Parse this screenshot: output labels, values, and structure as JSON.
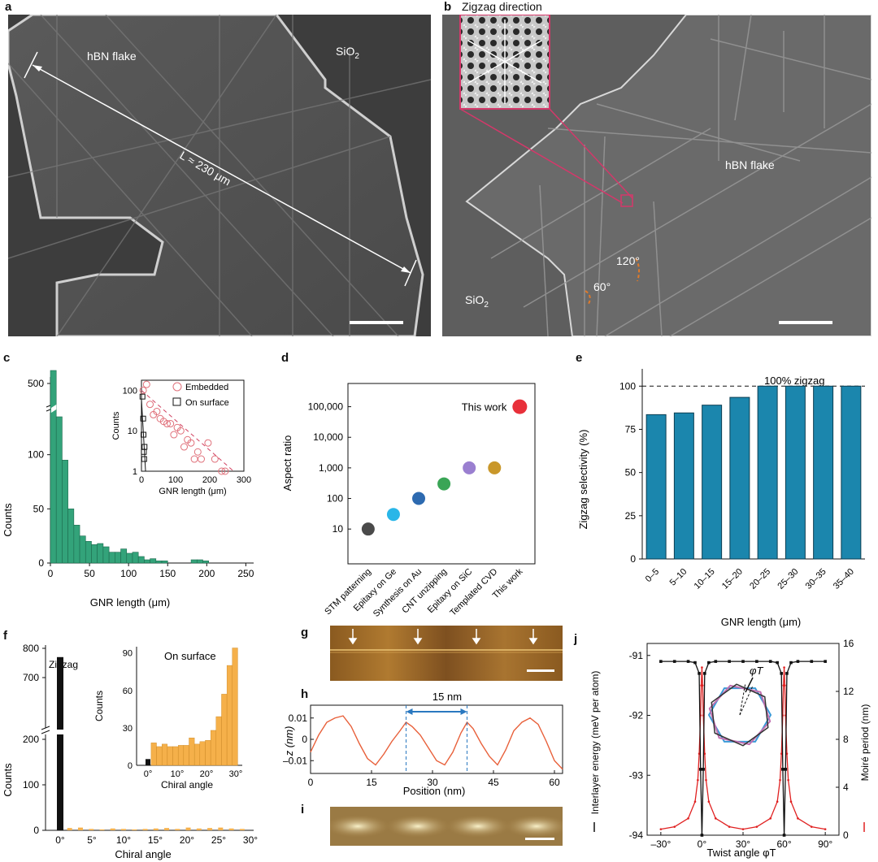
{
  "panels": {
    "a": {
      "letter": "a",
      "label_hbn": "hBN flake",
      "label_sio2": "SiO",
      "sub2": "2",
      "length_label": "L ≈ 230 μm"
    },
    "b": {
      "letter": "b",
      "inset_title": "Zigzag direction",
      "label_hbn": "hBN flake",
      "label_sio2": "SiO",
      "sub2": "2",
      "angle1": "120°",
      "angle2": "60°"
    },
    "c": {
      "letter": "c"
    },
    "d": {
      "letter": "d"
    },
    "e": {
      "letter": "e"
    },
    "f": {
      "letter": "f"
    },
    "g": {
      "letter": "g"
    },
    "h": {
      "letter": "h"
    },
    "i": {
      "letter": "i"
    },
    "j": {
      "letter": "j"
    }
  },
  "chart_data": [
    {
      "id": "c",
      "type": "bar",
      "xlabel": "GNR length (μm)",
      "ylabel": "Counts",
      "xticks": [
        0,
        50,
        100,
        150,
        200,
        250
      ],
      "yticks_lower": [
        0,
        50,
        100
      ],
      "yticks_upper": [
        500
      ],
      "bin_width": 7.5,
      "bin_starts": [
        0,
        7.5,
        15,
        22.5,
        30,
        37.5,
        45,
        52.5,
        60,
        67.5,
        75,
        82.5,
        90,
        97.5,
        105,
        112.5,
        120,
        127.5,
        135,
        142.5,
        150,
        157.5,
        165,
        172.5,
        180,
        187.5,
        195
      ],
      "values": [
        600,
        135,
        95,
        50,
        35,
        25,
        20,
        17,
        18,
        15,
        10,
        10,
        13,
        9,
        10,
        6,
        3,
        4,
        2,
        2,
        0,
        0,
        0,
        0,
        3,
        3,
        2
      ],
      "inset": {
        "type": "scatter",
        "xlabel": "GNR length (μm)",
        "ylabel": "Counts",
        "xticks": [
          0,
          100,
          200,
          300
        ],
        "yticks": [
          "1",
          "10",
          "100"
        ],
        "legend": [
          "Embedded",
          "On surface"
        ],
        "series": [
          {
            "name": "Embedded",
            "points": [
              [
                5,
                100
              ],
              [
                15,
                140
              ],
              [
                25,
                45
              ],
              [
                35,
                25
              ],
              [
                45,
                30
              ],
              [
                55,
                20
              ],
              [
                65,
                17
              ],
              [
                75,
                15
              ],
              [
                85,
                15
              ],
              [
                95,
                8
              ],
              [
                105,
                12
              ],
              [
                115,
                10
              ],
              [
                125,
                4
              ],
              [
                135,
                6
              ],
              [
                145,
                5
              ],
              [
                155,
                2
              ],
              [
                165,
                3
              ],
              [
                175,
                2
              ],
              [
                195,
                5
              ],
              [
                215,
                2
              ],
              [
                235,
                1
              ],
              [
                245,
                1
              ]
            ]
          },
          {
            "name": "On surface",
            "points": [
              [
                3,
                70
              ],
              [
                5,
                20
              ],
              [
                6,
                8
              ],
              [
                7,
                3
              ],
              [
                8,
                2
              ],
              [
                9,
                4
              ]
            ]
          }
        ]
      }
    },
    {
      "id": "d",
      "type": "scatter",
      "ylabel": "Aspect ratio",
      "yscale": "log",
      "yticks": [
        "10",
        "100",
        "1,000",
        "10,000",
        "100,000"
      ],
      "categories": [
        "STM patterning",
        "Epitaxy on Ge",
        "Synthesis on Au",
        "CNT unzipping",
        "Epitaxy on SiC",
        "Templated CVD",
        "This work"
      ],
      "values": [
        10,
        30,
        100,
        300,
        1000,
        1000,
        100000
      ],
      "colors": [
        "#4a4a4a",
        "#29b6e8",
        "#2d6ab0",
        "#3aa556",
        "#9a7fd0",
        "#c9972a",
        "#e8303a"
      ],
      "annotation": "This work"
    },
    {
      "id": "e",
      "type": "bar",
      "xlabel": "GNR length (μm)",
      "ylabel": "Zigzag selectivity (%)",
      "ylim": [
        0,
        110
      ],
      "yticks": [
        0,
        25,
        50,
        75,
        100
      ],
      "categories": [
        "0–5",
        "5–10",
        "10–15",
        "15–20",
        "20–25",
        "25–30",
        "30–35",
        "35–40"
      ],
      "values": [
        83.5,
        84.5,
        89,
        93.5,
        100,
        100,
        100,
        100
      ],
      "reference_label": "100% zigzag",
      "color": "#1b86ad"
    },
    {
      "id": "f",
      "type": "bar",
      "xlabel": "Chiral angle",
      "ylabel": "Counts",
      "yticks_lower": [
        0,
        100,
        200
      ],
      "yticks_upper": [
        700,
        800
      ],
      "xticks": [
        "0°",
        "5°",
        "10°",
        "15°",
        "20°",
        "25°",
        "30°"
      ],
      "zigzag_label": "Zigzag",
      "zigzag_count": 770,
      "other_counts": [
        5,
        6,
        3,
        2,
        4,
        3,
        2,
        3,
        4,
        5,
        3,
        6,
        4,
        5,
        6,
        4,
        3
      ],
      "inset": {
        "type": "bar",
        "title": "On surface",
        "xlabel": "Chiral angle",
        "ylabel": "Counts",
        "ylim": [
          0,
          95
        ],
        "yticks": [
          0,
          30,
          60,
          90
        ],
        "xticks": [
          "0°",
          "10°",
          "20°",
          "30°"
        ],
        "zigzag_count": 5,
        "values": [
          18,
          15,
          17,
          15,
          15,
          16,
          16,
          22,
          17,
          19,
          20,
          28,
          39,
          57,
          80,
          94
        ]
      }
    },
    {
      "id": "h",
      "type": "line",
      "xlabel": "Position (nm)",
      "ylabel": "z (nm)",
      "xticks": [
        0,
        15,
        30,
        45,
        60
      ],
      "yticks": [
        "0.01",
        "0",
        "–0.01"
      ],
      "period_label": "15 nm",
      "x": [
        0,
        2,
        4,
        6,
        8,
        10,
        12,
        14,
        16,
        18,
        20,
        22,
        23.5,
        25,
        27,
        29,
        31,
        33,
        35,
        37,
        38.5,
        40,
        42,
        44,
        46,
        48,
        50,
        52,
        54,
        56,
        58,
        60,
        62
      ],
      "y": [
        -0.006,
        0.002,
        0.008,
        0.01,
        0.011,
        0.006,
        -0.002,
        -0.009,
        -0.012,
        -0.007,
        -0.001,
        0.004,
        0.008,
        0.006,
        0.002,
        -0.004,
        -0.01,
        -0.012,
        -0.006,
        0.003,
        0.008,
        0.005,
        -0.002,
        -0.008,
        -0.012,
        -0.005,
        0.004,
        0.008,
        0.01,
        0.007,
        -0.001,
        -0.01,
        -0.014
      ]
    },
    {
      "id": "j",
      "type": "line",
      "xlabel": "Twist angle φT",
      "ylabel_left": "Interlayer energy (meV per atom)",
      "ylabel_right": "Moiré period (nm)",
      "xticks": [
        "–30°",
        "0°",
        "30°",
        "60°",
        "90°"
      ],
      "yticks_left": [
        "-91",
        "-92",
        "-93",
        "-94"
      ],
      "yticks_right": [
        "0",
        "4",
        "8",
        "12",
        "16"
      ],
      "inset_label": "φT",
      "series": [
        {
          "name": "Interlayer energy",
          "color": "#111111",
          "x": [
            -30,
            -20,
            -10,
            -5,
            -2,
            -1,
            0,
            1,
            2,
            5,
            10,
            20,
            30,
            40,
            50,
            55,
            58,
            59,
            60,
            61,
            62,
            65,
            70,
            80,
            90
          ],
          "y": [
            -91.1,
            -91.1,
            -91.1,
            -91.12,
            -91.3,
            -92.9,
            -94,
            -92.9,
            -91.3,
            -91.12,
            -91.1,
            -91.1,
            -91.1,
            -91.1,
            -91.1,
            -91.12,
            -91.3,
            -92.9,
            -94,
            -92.9,
            -91.3,
            -91.12,
            -91.1,
            -91.1,
            -91.1
          ]
        },
        {
          "name": "Moiré period",
          "color": "#e02020",
          "x": [
            -30,
            -20,
            -10,
            -5,
            -3,
            -2,
            -1,
            -0.5,
            0,
            0.5,
            1,
            2,
            3,
            5,
            10,
            20,
            30,
            40,
            50,
            55,
            57,
            58,
            59,
            59.5,
            60,
            60.5,
            61,
            62,
            63,
            65,
            70,
            80,
            90
          ],
          "y": [
            0.5,
            0.7,
            1.4,
            2.8,
            4.6,
            6.8,
            10,
            12.5,
            14,
            12.5,
            10,
            6.8,
            4.6,
            2.8,
            1.4,
            0.7,
            0.5,
            0.7,
            1.4,
            2.8,
            4.6,
            6.8,
            10,
            12.5,
            14,
            12.5,
            10,
            6.8,
            4.6,
            2.8,
            1.4,
            0.7,
            0.5
          ]
        }
      ]
    }
  ]
}
